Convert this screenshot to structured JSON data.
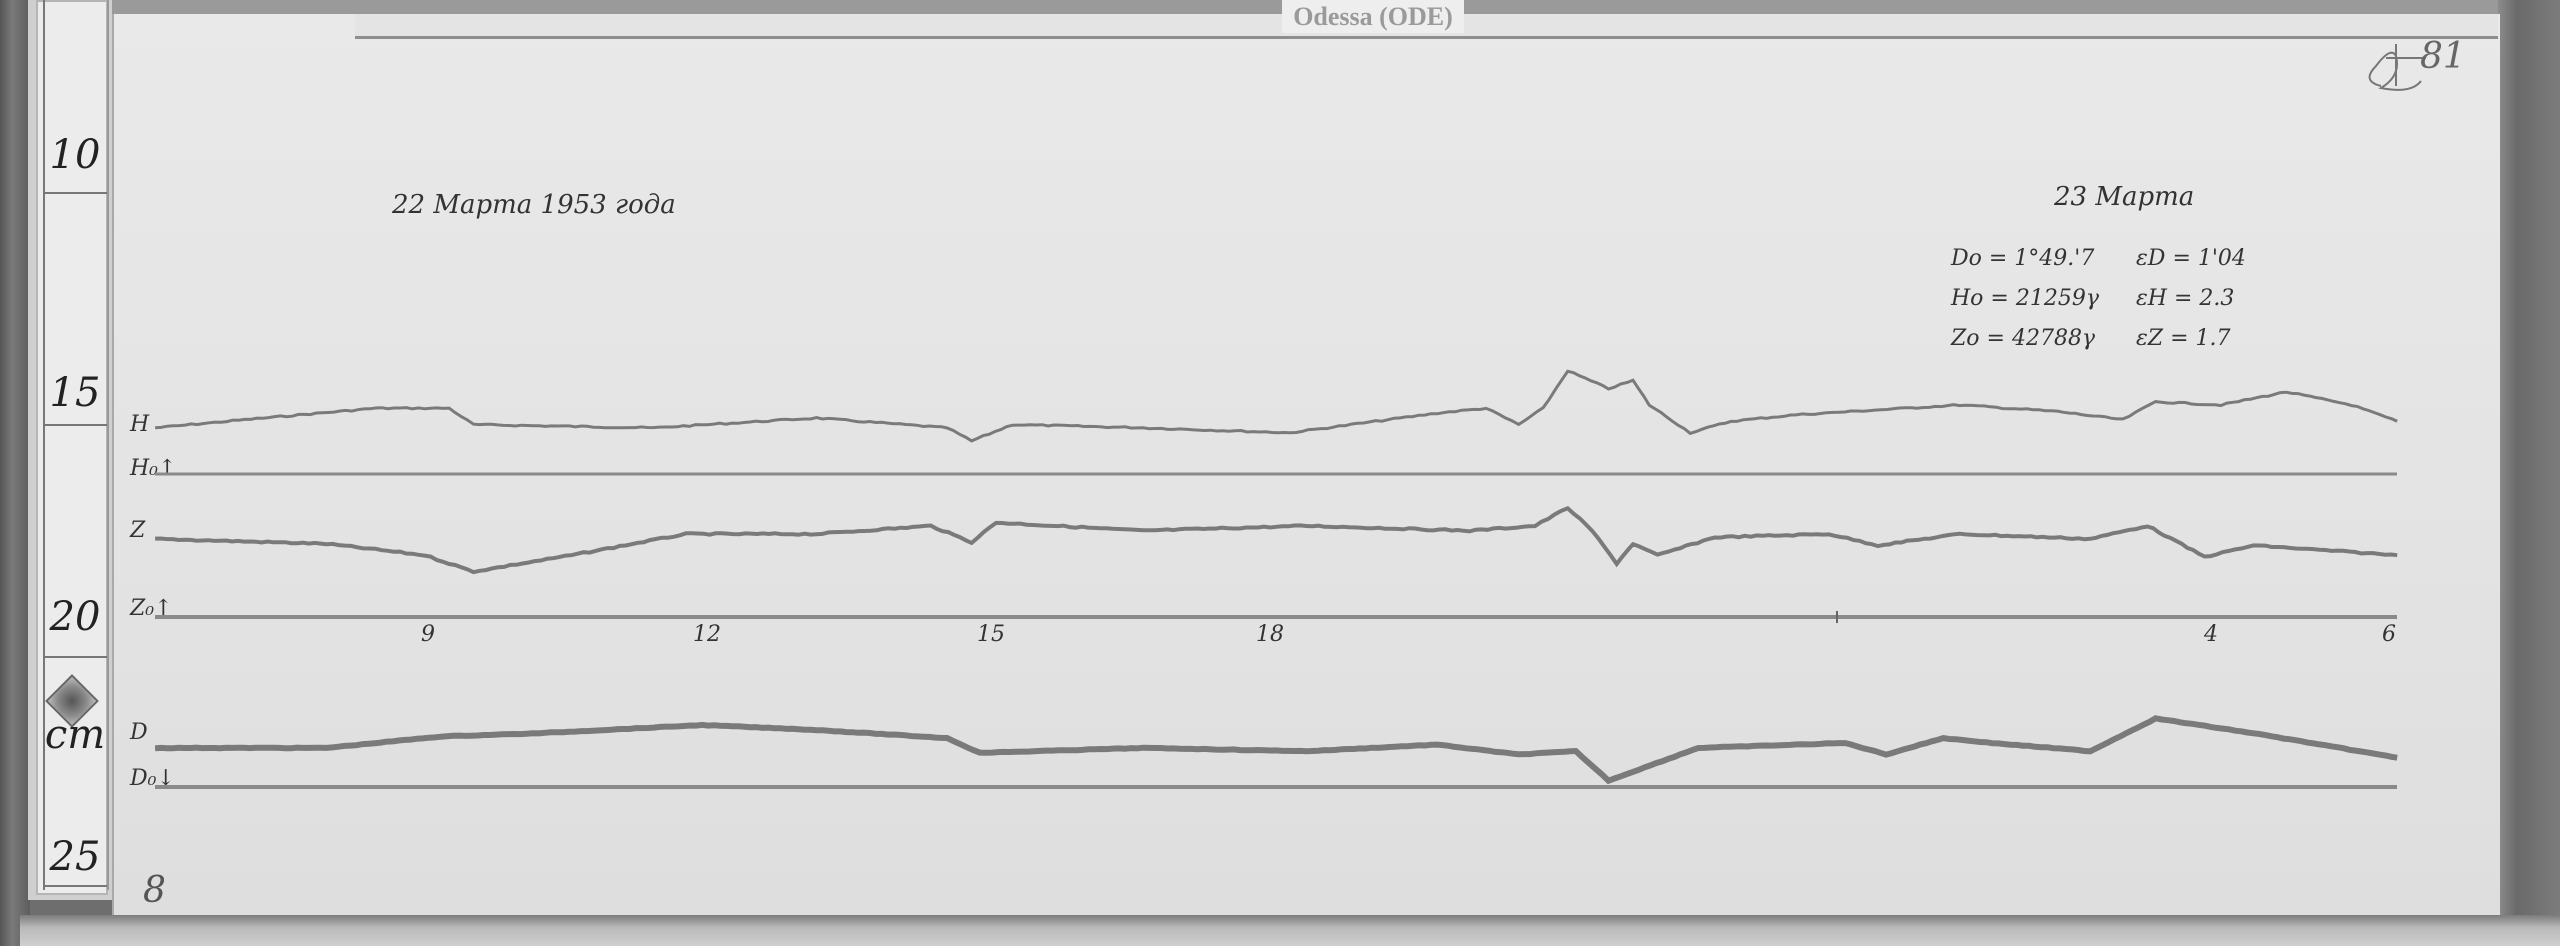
{
  "header": {
    "station_label": "Odessa (ODE)"
  },
  "ruler": {
    "marks": [
      "10",
      "15",
      "20",
      "25"
    ],
    "unit": "cm"
  },
  "magnetogram": {
    "date_start": "22 Марта 1953 года",
    "date_end": "23 Марта",
    "sheet_number": "81",
    "signature_initial": "Д",
    "corner_number": "8",
    "constants": [
      {
        "base": "Do = 1°49.'7",
        "scale": "εD = 1'04"
      },
      {
        "base": "Ho = 21259γ",
        "scale": "εH = 2.3"
      },
      {
        "base": "Zo = 42788γ",
        "scale": "εZ = 1.7"
      }
    ],
    "trace_labels": {
      "H": "H",
      "H0": "H₀↑",
      "Z": "Z",
      "Z0": "Z₀↑",
      "D": "D",
      "D0": "D₀↓"
    },
    "time_ticks": [
      "9",
      "12",
      "15",
      "18",
      "4",
      "6"
    ],
    "trace_color": "#7a7a7a",
    "baseline_color": "#8a8a8a"
  }
}
